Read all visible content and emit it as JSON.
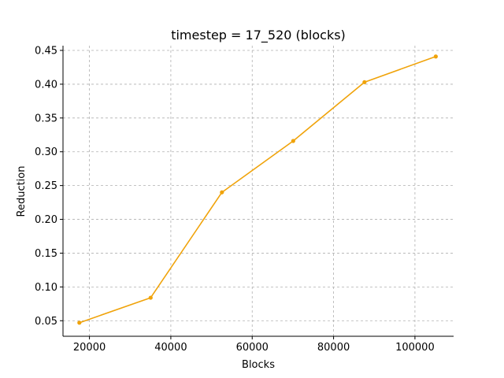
{
  "chart_data": {
    "type": "line",
    "title": "timestep = 17_520 (blocks)",
    "xlabel": "Blocks",
    "ylabel": "Reduction",
    "xlim": [
      13500,
      109500
    ],
    "ylim": [
      0.027,
      0.457
    ],
    "x_ticks": [
      20000,
      40000,
      60000,
      80000,
      100000
    ],
    "x_tick_labels": [
      "20000",
      "40000",
      "60000",
      "80000",
      "100000"
    ],
    "y_ticks": [
      0.05,
      0.1,
      0.15,
      0.2,
      0.25,
      0.3,
      0.35,
      0.4,
      0.45
    ],
    "y_tick_labels": [
      "0.05",
      "0.10",
      "0.15",
      "0.20",
      "0.25",
      "0.30",
      "0.35",
      "0.40",
      "0.45"
    ],
    "grid": true,
    "series": [
      {
        "color": "#f0a30a",
        "marker": "circle",
        "x": [
          17520,
          35040,
          52560,
          70080,
          87600,
          105120
        ],
        "y": [
          0.047,
          0.084,
          0.24,
          0.316,
          0.403,
          0.441
        ]
      }
    ]
  }
}
